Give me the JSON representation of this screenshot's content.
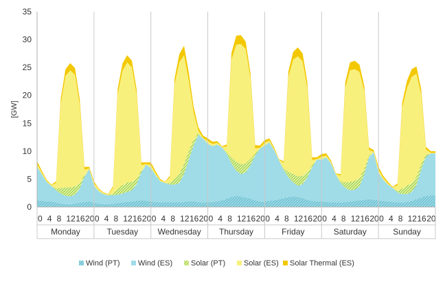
{
  "chart_data": {
    "type": "area",
    "stacked": true,
    "ylabel": "[GW]",
    "ylim": [
      0,
      35
    ],
    "yticks": [
      0,
      5,
      10,
      15,
      20,
      25,
      30,
      35
    ],
    "hour_ticks": [
      "0",
      "4",
      "8",
      "12",
      "16",
      "20"
    ],
    "days": [
      "Monday",
      "Tuesday",
      "Wednesday",
      "Thursday",
      "Friday",
      "Saturday",
      "Sunday"
    ],
    "x_unit": "hour of week (0-167)",
    "grid": "vertical day separators",
    "legend_position": "bottom",
    "x": [
      0,
      2,
      4,
      6,
      8,
      10,
      12,
      14,
      16,
      18,
      20,
      22,
      24,
      26,
      28,
      30,
      32,
      34,
      36,
      38,
      40,
      42,
      44,
      46,
      48,
      50,
      52,
      54,
      56,
      58,
      60,
      62,
      64,
      66,
      68,
      70,
      72,
      74,
      76,
      78,
      80,
      82,
      84,
      86,
      88,
      90,
      92,
      94,
      96,
      98,
      100,
      102,
      104,
      106,
      108,
      110,
      112,
      114,
      116,
      118,
      120,
      122,
      124,
      126,
      128,
      130,
      132,
      134,
      136,
      138,
      140,
      142,
      144,
      146,
      148,
      150,
      152,
      154,
      156,
      158,
      160,
      162,
      164,
      166
    ],
    "series": [
      {
        "name": "Wind (PT)",
        "color": "#9fdce8",
        "pattern": "hatch",
        "values": [
          1.2,
          1.1,
          1.0,
          1.0,
          0.8,
          0.6,
          0.5,
          0.5,
          0.6,
          0.8,
          0.9,
          1.0,
          0.8,
          0.6,
          0.5,
          0.5,
          0.6,
          0.7,
          0.8,
          0.9,
          1.0,
          1.1,
          1.2,
          1.1,
          1.0,
          0.9,
          0.8,
          0.8,
          0.8,
          0.8,
          0.8,
          0.9,
          1.0,
          1.0,
          0.9,
          0.8,
          0.8,
          0.9,
          1.0,
          1.2,
          1.5,
          1.8,
          2.0,
          1.9,
          1.7,
          1.5,
          1.2,
          1.0,
          1.0,
          1.1,
          1.2,
          1.4,
          1.6,
          1.8,
          1.9,
          1.8,
          1.6,
          1.3,
          1.1,
          1.0,
          1.0,
          0.9,
          0.8,
          0.8,
          0.8,
          0.9,
          1.0,
          1.1,
          1.2,
          1.3,
          1.4,
          1.3,
          1.2,
          1.1,
          1.0,
          0.9,
          0.8,
          0.8,
          0.9,
          1.1,
          1.4,
          1.7,
          2.0,
          2.1
        ]
      },
      {
        "name": "Wind (ES)",
        "color": "#9fdce8",
        "values": [
          6.0,
          4.8,
          3.5,
          2.8,
          2.2,
          1.8,
          1.5,
          1.4,
          1.6,
          2.5,
          4.5,
          5.8,
          3.0,
          2.2,
          1.8,
          1.6,
          1.5,
          1.5,
          1.6,
          1.8,
          2.0,
          3.0,
          5.0,
          6.5,
          6.0,
          4.8,
          3.8,
          3.5,
          3.2,
          3.2,
          3.5,
          5.0,
          7.5,
          10.0,
          12.0,
          11.5,
          10.5,
          10.0,
          10.2,
          9.5,
          8.0,
          6.0,
          4.5,
          4.0,
          4.5,
          6.0,
          8.0,
          9.5,
          10.0,
          10.5,
          9.0,
          7.0,
          5.0,
          3.5,
          2.5,
          2.0,
          2.5,
          4.0,
          6.0,
          7.5,
          7.5,
          8.0,
          7.0,
          5.0,
          3.5,
          2.5,
          2.0,
          2.0,
          2.5,
          4.5,
          7.5,
          8.5,
          5.0,
          3.8,
          3.0,
          2.5,
          1.8,
          1.5,
          1.4,
          1.6,
          2.5,
          5.0,
          7.0,
          7.5
        ]
      },
      {
        "name": "Solar (PT)",
        "color": "#b8e070",
        "pattern": "hatch",
        "values": [
          0,
          0,
          0,
          0,
          0.3,
          1.0,
          1.5,
          1.6,
          1.5,
          1.0,
          0.3,
          0,
          0,
          0,
          0,
          0,
          0.3,
          1.0,
          1.5,
          1.7,
          1.5,
          1.0,
          0.3,
          0,
          0,
          0,
          0,
          0,
          0.3,
          1.0,
          1.6,
          1.8,
          1.6,
          1.0,
          0.3,
          0,
          0,
          0,
          0,
          0,
          0.3,
          1.1,
          1.6,
          1.8,
          1.6,
          1.1,
          0.3,
          0,
          0,
          0,
          0,
          0,
          0.3,
          1.0,
          1.5,
          1.7,
          1.5,
          1.0,
          0.3,
          0,
          0,
          0,
          0,
          0,
          0.3,
          1.0,
          1.5,
          1.6,
          1.5,
          1.0,
          0.3,
          0,
          0,
          0,
          0,
          0,
          0.3,
          1.0,
          1.5,
          1.6,
          1.5,
          1.0,
          0.3,
          0
        ]
      },
      {
        "name": "Solar (ES)",
        "color": "#f8f07c",
        "values": [
          0.5,
          0.3,
          0.2,
          0.1,
          1.0,
          15.0,
          20.0,
          21.0,
          20.0,
          14.0,
          1.0,
          0.1,
          0.5,
          0.3,
          0.2,
          0.1,
          1.0,
          17.0,
          20.5,
          21.5,
          20.5,
          15.0,
          1.0,
          0.1,
          0.5,
          0.3,
          0.2,
          0.1,
          1.0,
          17.0,
          20.0,
          19.5,
          12.5,
          5.0,
          0.5,
          0.1,
          0.5,
          0.4,
          0.3,
          0.1,
          1.0,
          17.5,
          21.0,
          21.5,
          20.5,
          14.5,
          1.0,
          0.1,
          0.5,
          0.3,
          0.2,
          0.1,
          1.0,
          17.0,
          20.5,
          21.5,
          20.5,
          15.0,
          1.0,
          0.1,
          0.5,
          0.3,
          0.2,
          0.1,
          1.0,
          17.0,
          20.0,
          20.0,
          19.0,
          14.0,
          1.0,
          0.1,
          0.5,
          0.3,
          0.2,
          0.1,
          1.0,
          14.5,
          17.5,
          19.0,
          18.5,
          12.5,
          1.0,
          0.1
        ]
      },
      {
        "name": "Solar Thermal (ES)",
        "color": "#f3c800",
        "values": [
          0.5,
          0.3,
          0.2,
          0.1,
          0.3,
          1.0,
          1.2,
          1.3,
          1.2,
          1.0,
          0.5,
          0.3,
          0.3,
          0.2,
          0.1,
          0.1,
          0.3,
          1.0,
          1.3,
          1.3,
          1.2,
          0.9,
          0.5,
          0.3,
          0.5,
          0.4,
          0.2,
          0.1,
          0.3,
          1.0,
          1.5,
          1.7,
          1.4,
          1.0,
          0.6,
          0.4,
          0.5,
          0.4,
          0.3,
          0.1,
          0.4,
          1.2,
          1.6,
          1.6,
          1.3,
          0.9,
          0.6,
          0.4,
          0.5,
          0.4,
          0.3,
          0.1,
          0.3,
          1.0,
          1.4,
          1.6,
          1.4,
          1.0,
          0.5,
          0.3,
          0.5,
          0.4,
          0.3,
          0.1,
          0.3,
          1.0,
          1.4,
          1.5,
          1.3,
          0.9,
          0.5,
          0.3,
          0.5,
          0.4,
          0.3,
          0.1,
          0.3,
          0.9,
          1.3,
          1.4,
          1.3,
          0.9,
          0.5,
          0.3
        ]
      }
    ]
  }
}
